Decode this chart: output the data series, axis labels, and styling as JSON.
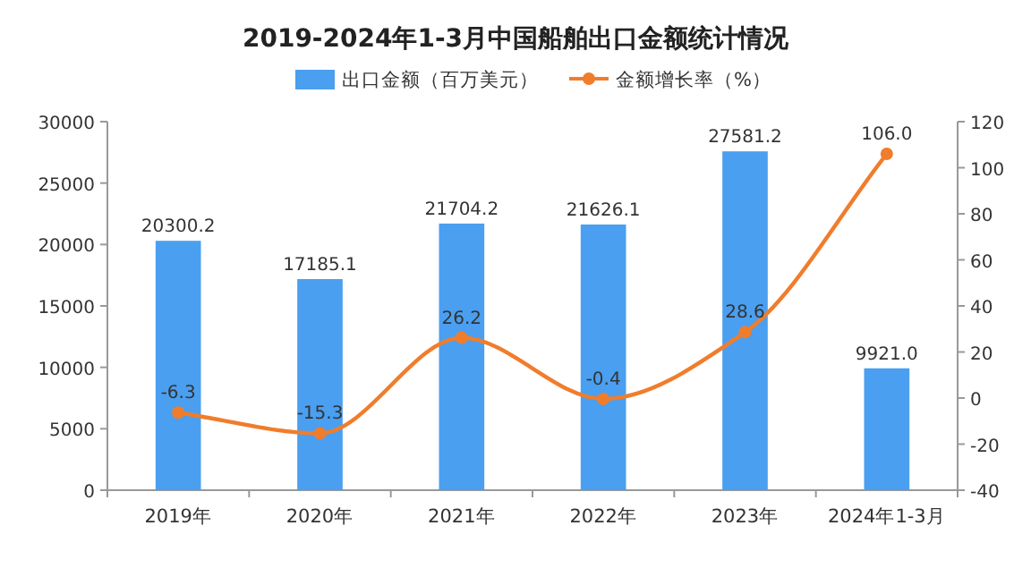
{
  "chart_data": {
    "type": "bar",
    "title": "2019-2024年1-3月中国船舶出口金额统计情况",
    "categories": [
      "2019年",
      "2020年",
      "2021年",
      "2022年",
      "2023年",
      "2024年1-3月"
    ],
    "series": [
      {
        "name": "出口金额（百万美元）",
        "color": "#4a9ff0",
        "values": [
          20300.2,
          17185.1,
          21704.2,
          21626.1,
          27581.2,
          9921.0
        ],
        "value_labels": [
          "20300.2",
          "17185.1",
          "21704.2",
          "21626.1",
          "27581.2",
          "9921.0"
        ]
      },
      {
        "name": "金额增长率（%）",
        "type": "line",
        "axis": "y2",
        "color": "#f07d2c",
        "values": [
          -6.3,
          -15.3,
          26.2,
          -0.4,
          28.6,
          106.0
        ],
        "value_labels": [
          "-6.3",
          "-15.3",
          "26.2",
          "-0.4",
          "28.6",
          "106.0"
        ]
      }
    ],
    "ylim": [
      0,
      30000
    ],
    "yticks": [
      0,
      5000,
      10000,
      15000,
      20000,
      25000,
      30000
    ],
    "y2lim": [
      -40,
      120
    ],
    "y2ticks": [
      -40,
      -20,
      0,
      20,
      40,
      60,
      80,
      100,
      120
    ],
    "marker": "circle",
    "legend": "top",
    "grid": false
  }
}
